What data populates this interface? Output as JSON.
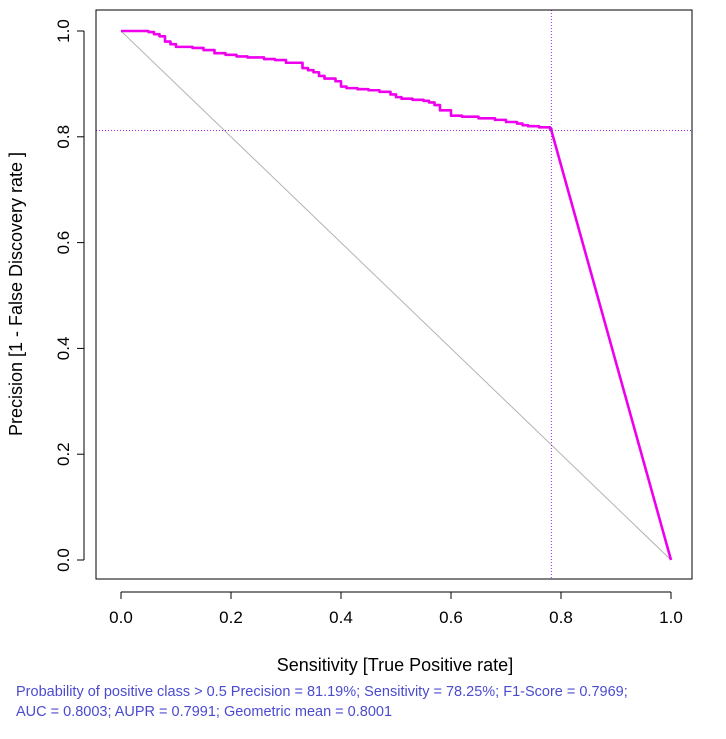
{
  "chart_data": {
    "type": "line",
    "title": "",
    "xlabel": "Sensitivity [True Positive rate]",
    "ylabel": "Precision [1 - False Discovery rate ]",
    "xlim": [
      0,
      1
    ],
    "ylim": [
      0,
      1
    ],
    "x_ticks": [
      "0.0",
      "0.2",
      "0.4",
      "0.6",
      "0.8",
      "1.0"
    ],
    "y_ticks": [
      "0.0",
      "0.2",
      "0.4",
      "0.6",
      "0.8",
      "1.0"
    ],
    "grid": false,
    "series": [
      {
        "name": "Precision-Recall curve",
        "color": "#ee00ee",
        "x": [
          0.0,
          0.02,
          0.05,
          0.06,
          0.07,
          0.08,
          0.09,
          0.1,
          0.13,
          0.15,
          0.17,
          0.19,
          0.21,
          0.23,
          0.26,
          0.28,
          0.3,
          0.33,
          0.34,
          0.35,
          0.36,
          0.37,
          0.39,
          0.4,
          0.41,
          0.43,
          0.45,
          0.47,
          0.49,
          0.5,
          0.51,
          0.53,
          0.55,
          0.56,
          0.57,
          0.58,
          0.6,
          0.62,
          0.65,
          0.68,
          0.7,
          0.72,
          0.73,
          0.74,
          0.76,
          0.78,
          0.7825,
          1.0
        ],
        "y": [
          1.0,
          1.0,
          0.998,
          0.994,
          0.99,
          0.98,
          0.975,
          0.97,
          0.968,
          0.964,
          0.958,
          0.955,
          0.952,
          0.95,
          0.947,
          0.945,
          0.94,
          0.93,
          0.926,
          0.922,
          0.915,
          0.91,
          0.905,
          0.895,
          0.892,
          0.89,
          0.888,
          0.885,
          0.88,
          0.875,
          0.872,
          0.87,
          0.868,
          0.865,
          0.86,
          0.85,
          0.84,
          0.838,
          0.835,
          0.832,
          0.828,
          0.825,
          0.822,
          0.82,
          0.818,
          0.815,
          0.8119,
          0.0
        ]
      },
      {
        "name": "Reference line",
        "color": "#b3b3b3",
        "x": [
          0.0,
          1.0
        ],
        "y": [
          1.0,
          0.0
        ]
      }
    ],
    "reference_lines": [
      {
        "orientation": "vertical",
        "value": 0.7825,
        "color": "#a020f0",
        "style": "dotted"
      },
      {
        "orientation": "horizontal",
        "value": 0.8119,
        "color": "#a020f0",
        "style": "dotted"
      }
    ],
    "caption": [
      "Probability of positive class > 0.5 Precision = 81.19%; Sensitivity = 78.25%; F1-Score = 0.7969;",
      "AUC =  0.8003; AUPR = 0.7991; Geometric mean = 0.8001"
    ]
  }
}
